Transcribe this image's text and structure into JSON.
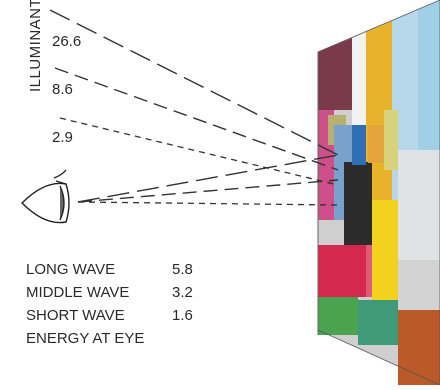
{
  "illuminant": {
    "axis_label": "ILLUMINANT",
    "values": [
      "26.6",
      "8.6",
      "2.9"
    ]
  },
  "energy": {
    "rows": [
      {
        "label": "LONG WAVE",
        "value": "5.8"
      },
      {
        "label": "MIDDLE WAVE",
        "value": "3.2"
      },
      {
        "label": "SHORT WAVE",
        "value": "1.6"
      }
    ],
    "caption": "ENERGY AT EYE"
  },
  "mondrian": {
    "patch_colors": [
      "#7a3a4a",
      "#c7a86a",
      "#f2f2f2",
      "#e8b32a",
      "#b7d8ea",
      "#9fd0e8",
      "#d7d37a",
      "#cf4f8a",
      "#e3a43a",
      "#7aa0cc",
      "#2b2b2b",
      "#2f6fb4",
      "#d4284e",
      "#f2d21e",
      "#49a34f",
      "#3f9a7a",
      "#d3d3d3",
      "#b95a28"
    ]
  }
}
